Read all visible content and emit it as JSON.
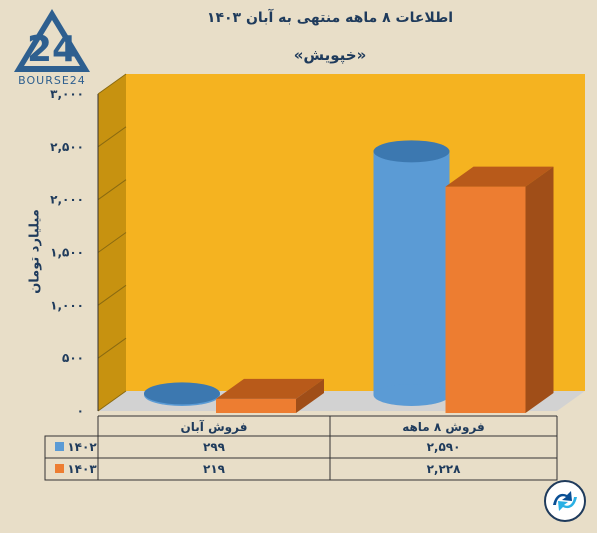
{
  "header": {
    "title": "اطلاعات ۸ ماهه منتهی به آبان ۱۴۰۳",
    "subtitle": "«خپویش»",
    "brand": "BOURSE24",
    "brand_mark": "24"
  },
  "colors": {
    "background": "#e8dec8",
    "plot_back": "#f5b320",
    "series_1402": "#5b9bd5",
    "series_1403": "#ed7d31",
    "text": "#1f3b5c"
  },
  "chart_data": {
    "type": "bar",
    "ylabel": "میلیارد تومان",
    "ylim": [
      0,
      3000
    ],
    "y_ticks": [
      "۰",
      "۵۰۰",
      "۱,۰۰۰",
      "۱,۵۰۰",
      "۲,۰۰۰",
      "۲,۵۰۰",
      "۳,۰۰۰"
    ],
    "y_tick_values": [
      0,
      500,
      1000,
      1500,
      2000,
      2500,
      3000
    ],
    "categories": [
      "فروش آبان",
      "فروش ۸ ماهه"
    ],
    "series": [
      {
        "name": "۱۴۰۲",
        "values": [
          299,
          2590
        ],
        "labels": [
          "۲۹۹",
          "۲,۵۹۰"
        ],
        "shape": "cylinder"
      },
      {
        "name": "۱۴۰۳",
        "values": [
          219,
          2228
        ],
        "labels": [
          "۲۱۹",
          "۲,۲۲۸"
        ],
        "shape": "box"
      }
    ],
    "legend": "table-below",
    "grid": false
  }
}
